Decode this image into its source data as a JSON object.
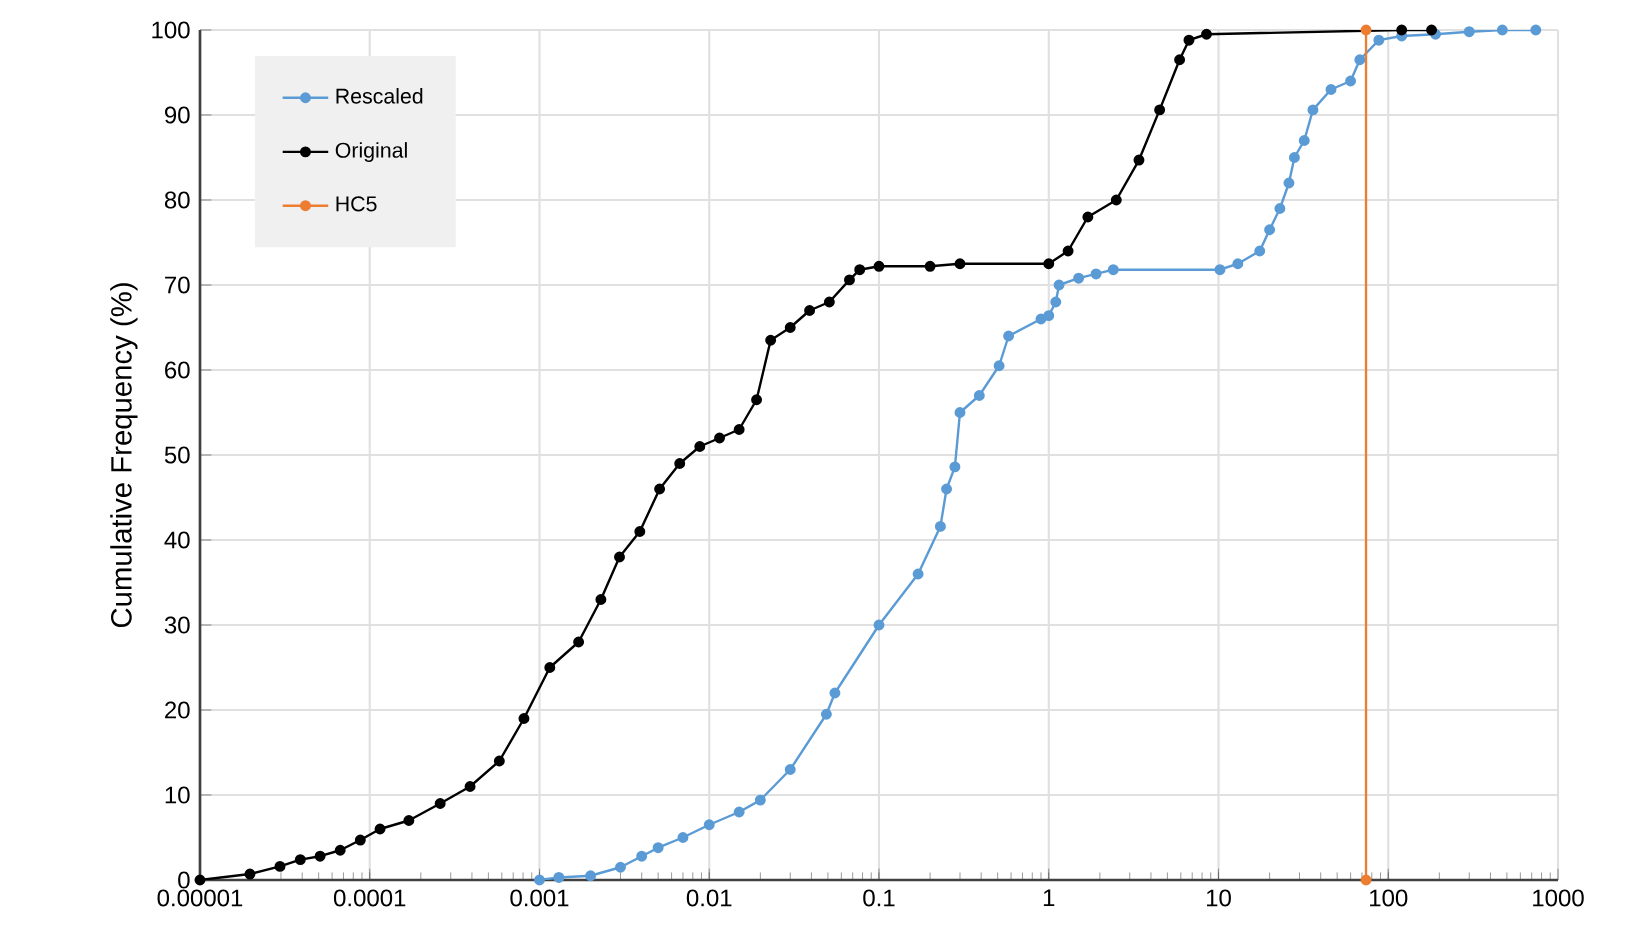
{
  "chart_data": {
    "type": "line",
    "ylabel": "Cumulative Frequency (%)",
    "log": "x",
    "grid": true,
    "legend": "top left",
    "marker": "circle",
    "line_style": "solid",
    "xlim": [
      1e-05,
      1000
    ],
    "ylim": [
      0,
      100
    ],
    "xticks": [
      {
        "value": 1e-05,
        "label": "0.00001"
      },
      {
        "value": 0.0001,
        "label": "0.0001"
      },
      {
        "value": 0.001,
        "label": "0.001"
      },
      {
        "value": 0.01,
        "label": "0.01"
      },
      {
        "value": 0.1,
        "label": "0.1"
      },
      {
        "value": 1,
        "label": "1"
      },
      {
        "value": 10,
        "label": "10"
      },
      {
        "value": 100,
        "label": "100"
      },
      {
        "value": 1000,
        "label": "1000"
      }
    ],
    "yticks": [
      0,
      10,
      20,
      30,
      40,
      50,
      60,
      70,
      80,
      90,
      100
    ],
    "series": [
      {
        "name": "Rescaled",
        "color": "#5b9bd5",
        "x": [
          0.001,
          0.0013,
          0.002,
          0.003,
          0.004,
          0.005,
          0.007,
          0.01,
          0.015,
          0.02,
          0.03,
          0.049,
          0.055,
          0.1,
          0.17,
          0.23,
          0.25,
          0.28,
          0.3,
          0.39,
          0.51,
          0.58,
          0.9,
          1.0,
          1.1,
          1.15,
          1.5,
          1.9,
          2.4,
          10.2,
          13,
          17.5,
          20,
          23,
          26,
          28,
          32,
          36,
          46,
          60,
          68,
          74,
          88,
          120,
          190,
          300,
          470,
          740
        ],
        "values": [
          0,
          0.3,
          0.5,
          1.5,
          2.8,
          3.8,
          5,
          6.5,
          8,
          9.4,
          13,
          19.5,
          22,
          30,
          36,
          41.6,
          46,
          48.6,
          55,
          57,
          60.5,
          64,
          66,
          66.4,
          68,
          70,
          70.8,
          71.3,
          71.8,
          71.8,
          72.5,
          74,
          76.5,
          79,
          82,
          85,
          87,
          90.6,
          93,
          94,
          96.5,
          null,
          98.8,
          99.3,
          99.5,
          99.8,
          100,
          100
        ]
      },
      {
        "name": "Original",
        "color": "#000000",
        "x": [
          1e-05,
          1.97e-05,
          2.96e-05,
          3.9e-05,
          5.1e-05,
          6.7e-05,
          8.8e-05,
          0.000115,
          0.00017,
          0.00026,
          0.00039,
          0.00058,
          0.00081,
          0.00115,
          0.0017,
          0.0023,
          0.00296,
          0.0039,
          0.0051,
          0.0067,
          0.0088,
          0.0115,
          0.015,
          0.019,
          0.023,
          0.03,
          0.039,
          0.051,
          0.067,
          0.077,
          0.1,
          0.2,
          0.3,
          1.0,
          1.3,
          1.7,
          2.5,
          3.4,
          4.5,
          5.9,
          6.7,
          8.5,
          70,
          120,
          180
        ],
        "values": [
          0,
          0.7,
          1.6,
          2.4,
          2.8,
          3.5,
          4.7,
          6,
          7,
          9,
          11,
          14,
          19,
          25,
          28,
          33,
          38,
          41,
          46,
          49,
          51,
          52,
          53,
          56.5,
          63.5,
          65,
          67,
          68,
          70.6,
          71.8,
          72.2,
          72.2,
          72.5,
          72.5,
          74,
          78,
          80,
          84.7,
          90.6,
          96.5,
          98.8,
          99.5,
          null,
          100,
          100
        ]
      },
      {
        "name": "HC5",
        "color": "#ed7d31",
        "x": [
          74,
          74
        ],
        "values": [
          0,
          100
        ]
      }
    ]
  }
}
